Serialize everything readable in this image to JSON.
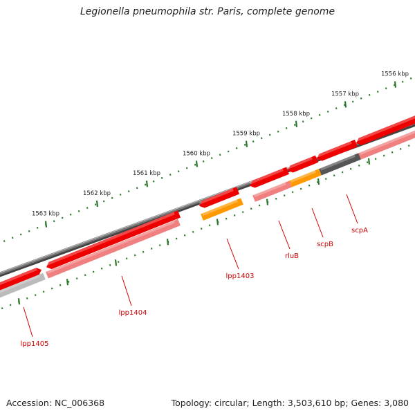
{
  "title": "Legionella pneumophila str. Paris, complete genome",
  "footer": {
    "accession": "Accession: NC_006368",
    "summary": "Topology: circular; Length: 3,503,610 bp; Genes: 3,080"
  },
  "colors": {
    "backbone": "#7a7a7a",
    "gene_red": "#ee0000",
    "gene_orange": "#ff9900",
    "gene_dark": "#555555",
    "gene_light": "#bbbbbb",
    "gene_pink": "#f08080",
    "tick": "#2a7a2a",
    "label": "#cc0000"
  },
  "outer_ticks": [
    {
      "kbp": 1556,
      "label": "1556 kbp"
    },
    {
      "kbp": 1557,
      "label": "1557 kbp"
    },
    {
      "kbp": 1558,
      "label": "1558 kbp"
    },
    {
      "kbp": 1559,
      "label": "1559 kbp"
    },
    {
      "kbp": 1560,
      "label": "1560 kbp"
    },
    {
      "kbp": 1561,
      "label": "1561 kbp"
    },
    {
      "kbp": 1562,
      "label": "1562 kbp"
    },
    {
      "kbp": 1563,
      "label": "1563 kbp"
    }
  ],
  "genes": [
    {
      "name": "lpp1405",
      "label": "lpp1405"
    },
    {
      "name": "lpp1404",
      "label": "lpp1404"
    },
    {
      "name": "lpp1403",
      "label": "lpp1403"
    },
    {
      "name": "rluB",
      "label": "rluB"
    },
    {
      "name": "scpB",
      "label": "scpB"
    },
    {
      "name": "scpA",
      "label": "scpA"
    }
  ]
}
